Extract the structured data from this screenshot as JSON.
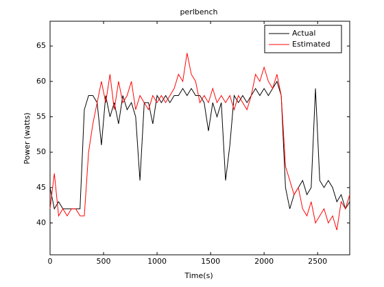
{
  "chart_data": {
    "type": "line",
    "title": "perlbench",
    "xlabel": "Time(s)",
    "ylabel": "Power (watts)",
    "x": [
      0,
      40,
      80,
      120,
      160,
      200,
      240,
      280,
      320,
      360,
      400,
      440,
      480,
      520,
      560,
      600,
      640,
      680,
      720,
      760,
      800,
      840,
      880,
      920,
      960,
      1000,
      1040,
      1080,
      1120,
      1160,
      1200,
      1240,
      1280,
      1320,
      1360,
      1400,
      1440,
      1480,
      1520,
      1560,
      1600,
      1640,
      1680,
      1720,
      1760,
      1800,
      1840,
      1880,
      1920,
      1960,
      2000,
      2040,
      2080,
      2120,
      2160,
      2200,
      2240,
      2280,
      2320,
      2360,
      2400,
      2440,
      2480,
      2520,
      2560,
      2600,
      2640,
      2680,
      2720,
      2760,
      2800
    ],
    "series": [
      {
        "name": "Actual",
        "color": "#000000",
        "values": [
          45,
          42,
          43,
          42,
          42,
          42,
          42,
          42,
          56,
          58,
          58,
          57,
          51,
          58,
          55,
          57,
          54,
          58,
          56,
          57,
          55,
          46,
          57,
          57,
          54,
          58,
          57,
          58,
          57,
          58,
          58,
          59,
          58,
          59,
          58,
          58,
          57,
          53,
          57,
          55,
          57,
          46,
          51,
          58,
          57,
          58,
          57,
          58,
          59,
          58,
          59,
          58,
          59,
          60,
          58,
          45,
          42,
          44,
          45,
          46,
          44,
          45,
          59,
          46,
          45,
          46,
          45,
          43,
          44,
          42,
          43
        ]
      },
      {
        "name": "Estimated",
        "color": "#ff0000",
        "values": [
          42,
          47,
          41,
          42,
          41,
          42,
          42,
          41,
          41,
          50,
          54,
          57,
          60,
          57,
          61,
          56,
          60,
          57,
          58,
          60,
          56,
          58,
          57,
          56,
          58,
          57,
          58,
          57,
          58,
          59,
          61,
          60,
          64,
          61,
          60,
          57,
          58,
          57,
          59,
          57,
          58,
          57,
          58,
          56,
          58,
          57,
          56,
          58,
          61,
          60,
          62,
          60,
          59,
          61,
          58,
          48,
          46,
          44,
          45,
          42,
          41,
          43,
          40,
          41,
          42,
          40,
          41,
          39,
          43,
          42,
          44
        ]
      }
    ],
    "xlim": [
      0,
      2800
    ],
    "ylim": [
      35.5,
      68.5
    ],
    "xticks": [
      0,
      500,
      1000,
      1500,
      2000,
      2500
    ],
    "yticks": [
      40,
      45,
      50,
      55,
      60,
      65
    ],
    "legend": "top-right"
  }
}
